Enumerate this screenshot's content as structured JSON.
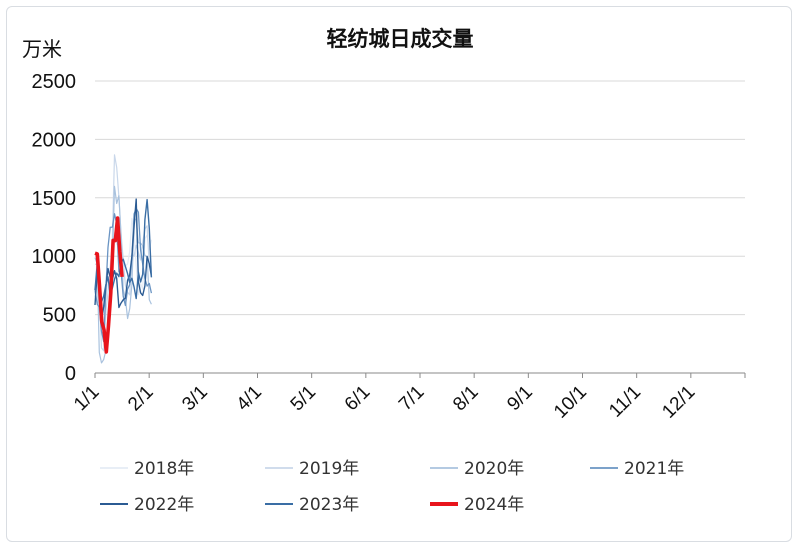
{
  "chart_data": {
    "type": "line",
    "title": "轻纺城日成交量",
    "ylabel": "万米",
    "ylim": [
      0,
      2500
    ],
    "yticks": [
      "0",
      "500",
      "1000",
      "1500",
      "2000",
      "2500"
    ],
    "xticks": [
      "1/1",
      "2/1",
      "3/1",
      "4/1",
      "5/1",
      "6/1",
      "7/1",
      "8/1",
      "9/1",
      "10/1",
      "11/1",
      "12/1"
    ],
    "grid": "horizontal",
    "legend_position": "bottom",
    "series": [
      {
        "name": "2018年",
        "color": "#e4ebf5",
        "width": 1.2,
        "values": [
          600,
          850,
          750,
          350,
          300,
          700,
          900,
          1200,
          1450,
          1900,
          1250,
          1100,
          1000,
          750,
          700,
          900,
          1100,
          1500,
          1300,
          1100,
          900,
          850,
          1050,
          1050,
          900,
          900
        ]
      },
      {
        "name": "2019年",
        "color": "#c9d7ea",
        "width": 1.2,
        "values": [
          800,
          750,
          600,
          150,
          200,
          800,
          900,
          1200,
          1250,
          2000,
          1250,
          1050,
          850,
          700,
          750,
          800,
          1000,
          1550,
          1450,
          1150,
          850,
          850,
          950,
          1000,
          850,
          850
        ]
      },
      {
        "name": "2020年",
        "color": "#a9c2de",
        "width": 1.2,
        "values": [
          900,
          850,
          150,
          100,
          150,
          250,
          600,
          750,
          950,
          1450,
          1150,
          1200,
          950,
          750,
          700,
          750,
          850,
          1250,
          1200,
          1000,
          850,
          850,
          900,
          950,
          850,
          800
        ]
      },
      {
        "name": "2021年",
        "color": "#6a94c3",
        "width": 1.3,
        "values": [
          850,
          800,
          700,
          350,
          250,
          850,
          950,
          1050,
          1050,
          1400,
          1200,
          1100,
          950,
          750,
          700,
          750,
          800,
          1050,
          1050,
          1150,
          950,
          1000,
          1050,
          1150,
          900,
          850
        ]
      },
      {
        "name": "2022年",
        "color": "#2b5b93",
        "width": 1.4,
        "values": [
          700,
          900,
          650,
          400,
          450,
          650,
          750,
          800,
          850,
          1050,
          900,
          850,
          800,
          650,
          600,
          650,
          750,
          900,
          1500,
          950,
          850,
          950,
          1050,
          1200,
          850,
          750
        ]
      },
      {
        "name": "2023年",
        "color": "#3a6ea5",
        "width": 1.4,
        "values": [
          750,
          800,
          600,
          500,
          550,
          750,
          850,
          950,
          900,
          1150,
          950,
          900,
          850,
          700,
          650,
          700,
          750,
          900,
          950,
          1050,
          950,
          1000,
          1100,
          1250,
          950,
          700
        ]
      },
      {
        "name": "2024年",
        "color": "#e8141c",
        "width": 3.6,
        "values": [
          900,
          800,
          700,
          450,
          400,
          200,
          550,
          900,
          1100,
          1200,
          1100,
          950,
          700
        ]
      }
    ]
  }
}
